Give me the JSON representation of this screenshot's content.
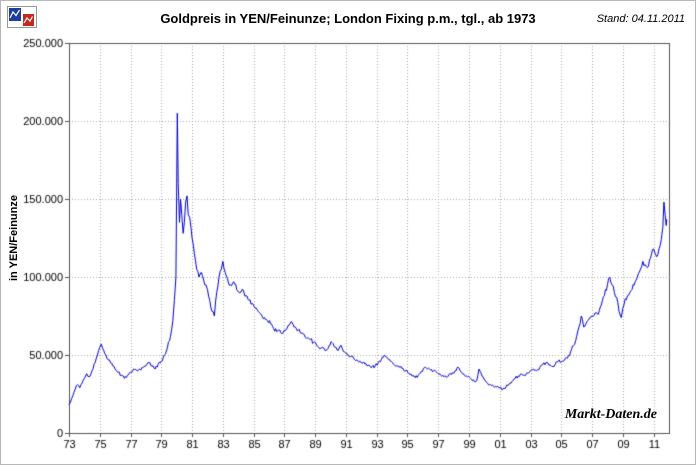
{
  "header": {
    "title": "Goldpreis in  YEN/Feinunze; London Fixing p.m., tgl., ab 1973",
    "stand": "Stand: 04.11.2011",
    "logo_colors": {
      "blue": "#1c3e9e",
      "red": "#c4281e"
    }
  },
  "watermark": "Markt-Daten.de",
  "chart_data": {
    "type": "line",
    "title": "Goldpreis in YEN/Feinunze; London Fixing p.m., tgl., ab 1973",
    "xlabel": "",
    "ylabel": "in YEN/Feinunze",
    "xlim": [
      1973,
      2012
    ],
    "ylim": [
      0,
      250000
    ],
    "grid": true,
    "legend_position": "none",
    "line_color": "#0000cc",
    "frame_color": "#555555",
    "grid_color": "#aaaaaa",
    "yticks": {
      "values": [
        0,
        50000,
        100000,
        150000,
        200000,
        250000
      ],
      "labels": [
        "0",
        "50.000",
        "100.000",
        "150.000",
        "200.000",
        "250.000"
      ]
    },
    "xticks": {
      "values": [
        1973,
        1975,
        1977,
        1979,
        1981,
        1983,
        1985,
        1987,
        1989,
        1991,
        1993,
        1995,
        1997,
        1999,
        2001,
        2003,
        2005,
        2007,
        2009,
        2011
      ],
      "labels": [
        "73",
        "75",
        "77",
        "79",
        "81",
        "83",
        "85",
        "87",
        "89",
        "91",
        "93",
        "95",
        "97",
        "99",
        "01",
        "03",
        "05",
        "07",
        "09",
        "11"
      ]
    },
    "series": [
      {
        "name": "Goldpreis YEN/Feinunze (London Fixing p.m.)",
        "points": [
          [
            1973.0,
            18000
          ],
          [
            1973.1,
            20000
          ],
          [
            1973.25,
            24000
          ],
          [
            1973.4,
            28000
          ],
          [
            1973.55,
            31000
          ],
          [
            1973.7,
            29000
          ],
          [
            1973.85,
            32000
          ],
          [
            1974.0,
            35000
          ],
          [
            1974.15,
            38000
          ],
          [
            1974.3,
            36000
          ],
          [
            1974.5,
            40000
          ],
          [
            1974.7,
            45000
          ],
          [
            1974.85,
            50000
          ],
          [
            1975.0,
            55000
          ],
          [
            1975.1,
            57000
          ],
          [
            1975.25,
            53000
          ],
          [
            1975.4,
            50000
          ],
          [
            1975.55,
            47000
          ],
          [
            1975.7,
            45000
          ],
          [
            1975.85,
            43000
          ],
          [
            1976.0,
            41000
          ],
          [
            1976.2,
            39000
          ],
          [
            1976.4,
            37000
          ],
          [
            1976.6,
            35000
          ],
          [
            1976.8,
            37000
          ],
          [
            1977.0,
            39000
          ],
          [
            1977.2,
            41000
          ],
          [
            1977.4,
            40000
          ],
          [
            1977.6,
            41000
          ],
          [
            1977.8,
            42000
          ],
          [
            1978.0,
            43000
          ],
          [
            1978.2,
            45000
          ],
          [
            1978.4,
            43000
          ],
          [
            1978.6,
            41000
          ],
          [
            1978.8,
            44000
          ],
          [
            1979.0,
            46000
          ],
          [
            1979.2,
            50000
          ],
          [
            1979.4,
            55000
          ],
          [
            1979.6,
            62000
          ],
          [
            1979.75,
            72000
          ],
          [
            1979.85,
            85000
          ],
          [
            1979.95,
            100000
          ],
          [
            1980.04,
            205000
          ],
          [
            1980.1,
            160000
          ],
          [
            1980.18,
            135000
          ],
          [
            1980.25,
            150000
          ],
          [
            1980.33,
            140000
          ],
          [
            1980.42,
            128000
          ],
          [
            1980.5,
            135000
          ],
          [
            1980.58,
            148000
          ],
          [
            1980.67,
            152000
          ],
          [
            1980.75,
            140000
          ],
          [
            1980.85,
            138000
          ],
          [
            1981.0,
            125000
          ],
          [
            1981.15,
            115000
          ],
          [
            1981.3,
            105000
          ],
          [
            1981.45,
            100000
          ],
          [
            1981.6,
            103000
          ],
          [
            1981.75,
            98000
          ],
          [
            1981.9,
            95000
          ],
          [
            1982.0,
            92000
          ],
          [
            1982.15,
            85000
          ],
          [
            1982.3,
            78000
          ],
          [
            1982.45,
            75000
          ],
          [
            1982.6,
            90000
          ],
          [
            1982.75,
            100000
          ],
          [
            1982.9,
            105000
          ],
          [
            1983.0,
            110000
          ],
          [
            1983.15,
            103000
          ],
          [
            1983.3,
            99000
          ],
          [
            1983.5,
            95000
          ],
          [
            1983.7,
            97000
          ],
          [
            1983.9,
            92000
          ],
          [
            1984.1,
            90000
          ],
          [
            1984.3,
            92000
          ],
          [
            1984.5,
            88000
          ],
          [
            1984.7,
            85000
          ],
          [
            1984.9,
            83000
          ],
          [
            1985.1,
            80000
          ],
          [
            1985.3,
            78000
          ],
          [
            1985.5,
            76000
          ],
          [
            1985.7,
            74000
          ],
          [
            1985.9,
            72000
          ],
          [
            1986.1,
            70000
          ],
          [
            1986.3,
            67000
          ],
          [
            1986.5,
            65000
          ],
          [
            1986.7,
            66000
          ],
          [
            1986.9,
            64000
          ],
          [
            1987.1,
            66000
          ],
          [
            1987.3,
            69000
          ],
          [
            1987.5,
            71000
          ],
          [
            1987.7,
            68000
          ],
          [
            1987.9,
            66000
          ],
          [
            1988.1,
            64000
          ],
          [
            1988.3,
            63000
          ],
          [
            1988.5,
            61000
          ],
          [
            1988.7,
            60000
          ],
          [
            1988.9,
            58000
          ],
          [
            1989.1,
            56000
          ],
          [
            1989.3,
            54000
          ],
          [
            1989.5,
            55000
          ],
          [
            1989.7,
            53000
          ],
          [
            1989.9,
            56000
          ],
          [
            1990.1,
            58000
          ],
          [
            1990.3,
            55000
          ],
          [
            1990.5,
            53000
          ],
          [
            1990.7,
            56000
          ],
          [
            1990.9,
            52000
          ],
          [
            1991.1,
            50000
          ],
          [
            1991.3,
            49000
          ],
          [
            1991.5,
            48000
          ],
          [
            1991.7,
            47000
          ],
          [
            1991.9,
            46000
          ],
          [
            1992.1,
            45000
          ],
          [
            1992.3,
            44500
          ],
          [
            1992.5,
            43500
          ],
          [
            1992.7,
            42500
          ],
          [
            1992.9,
            43000
          ],
          [
            1993.1,
            45000
          ],
          [
            1993.3,
            47000
          ],
          [
            1993.5,
            50000
          ],
          [
            1993.7,
            48000
          ],
          [
            1993.9,
            46000
          ],
          [
            1994.1,
            44000
          ],
          [
            1994.3,
            43000
          ],
          [
            1994.5,
            42000
          ],
          [
            1994.7,
            41500
          ],
          [
            1994.9,
            40000
          ],
          [
            1995.1,
            38000
          ],
          [
            1995.3,
            36500
          ],
          [
            1995.5,
            35500
          ],
          [
            1995.7,
            37000
          ],
          [
            1995.9,
            39500
          ],
          [
            1996.1,
            42000
          ],
          [
            1996.3,
            41000
          ],
          [
            1996.5,
            40500
          ],
          [
            1996.7,
            40000
          ],
          [
            1996.9,
            39000
          ],
          [
            1997.1,
            38000
          ],
          [
            1997.3,
            37000
          ],
          [
            1997.5,
            36000
          ],
          [
            1997.7,
            37500
          ],
          [
            1997.9,
            38500
          ],
          [
            1998.1,
            40000
          ],
          [
            1998.3,
            42000
          ],
          [
            1998.5,
            39000
          ],
          [
            1998.7,
            37000
          ],
          [
            1998.9,
            36000
          ],
          [
            1999.1,
            35000
          ],
          [
            1999.3,
            34000
          ],
          [
            1999.5,
            33500
          ],
          [
            1999.65,
            41000
          ],
          [
            1999.8,
            38000
          ],
          [
            2000.0,
            34000
          ],
          [
            2000.2,
            32000
          ],
          [
            2000.4,
            31000
          ],
          [
            2000.6,
            30000
          ],
          [
            2000.8,
            29500
          ],
          [
            2001.0,
            29000
          ],
          [
            2001.2,
            28000
          ],
          [
            2001.4,
            29500
          ],
          [
            2001.6,
            31000
          ],
          [
            2001.8,
            33000
          ],
          [
            2002.0,
            35000
          ],
          [
            2002.2,
            36500
          ],
          [
            2002.4,
            38000
          ],
          [
            2002.6,
            37000
          ],
          [
            2002.8,
            38500
          ],
          [
            2003.0,
            40000
          ],
          [
            2003.2,
            41000
          ],
          [
            2003.4,
            40000
          ],
          [
            2003.6,
            42000
          ],
          [
            2003.8,
            44000
          ],
          [
            2004.0,
            45000
          ],
          [
            2004.2,
            43500
          ],
          [
            2004.4,
            42500
          ],
          [
            2004.6,
            44000
          ],
          [
            2004.8,
            46000
          ],
          [
            2005.0,
            45500
          ],
          [
            2005.2,
            46500
          ],
          [
            2005.4,
            48000
          ],
          [
            2005.6,
            52000
          ],
          [
            2005.8,
            56000
          ],
          [
            2006.0,
            62000
          ],
          [
            2006.15,
            68000
          ],
          [
            2006.3,
            75000
          ],
          [
            2006.45,
            68000
          ],
          [
            2006.6,
            70000
          ],
          [
            2006.8,
            73000
          ],
          [
            2007.0,
            75000
          ],
          [
            2007.2,
            77000
          ],
          [
            2007.4,
            76000
          ],
          [
            2007.6,
            82000
          ],
          [
            2007.8,
            88000
          ],
          [
            2008.0,
            95000
          ],
          [
            2008.15,
            100000
          ],
          [
            2008.3,
            95000
          ],
          [
            2008.45,
            90000
          ],
          [
            2008.6,
            87000
          ],
          [
            2008.75,
            78000
          ],
          [
            2008.9,
            74000
          ],
          [
            2009.0,
            80000
          ],
          [
            2009.15,
            86000
          ],
          [
            2009.3,
            88000
          ],
          [
            2009.45,
            90000
          ],
          [
            2009.6,
            92000
          ],
          [
            2009.8,
            97000
          ],
          [
            2010.0,
            102000
          ],
          [
            2010.15,
            105000
          ],
          [
            2010.3,
            110000
          ],
          [
            2010.45,
            108000
          ],
          [
            2010.6,
            106000
          ],
          [
            2010.8,
            112000
          ],
          [
            2011.0,
            118000
          ],
          [
            2011.1,
            115000
          ],
          [
            2011.2,
            113000
          ],
          [
            2011.35,
            118000
          ],
          [
            2011.5,
            124000
          ],
          [
            2011.6,
            132000
          ],
          [
            2011.67,
            148000
          ],
          [
            2011.75,
            140000
          ],
          [
            2011.82,
            133000
          ],
          [
            2011.85,
            137000
          ]
        ]
      }
    ]
  }
}
